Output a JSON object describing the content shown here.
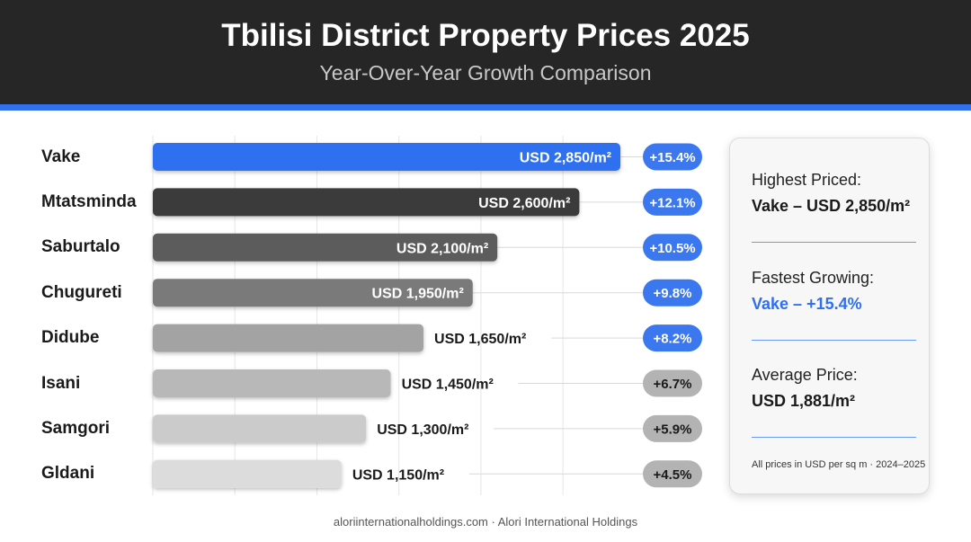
{
  "header": {
    "title": "Tbilisi District Property Prices 2025",
    "subtitle": "Year-Over-Year Growth Comparison"
  },
  "chart_data": {
    "type": "bar",
    "orientation": "horizontal",
    "categories": [
      "Vake",
      "Mtatsminda",
      "Saburtalo",
      "Chugureti",
      "Didube",
      "Isani",
      "Samgori",
      "Gldani"
    ],
    "values": [
      2850,
      2600,
      2100,
      1950,
      1650,
      1450,
      1300,
      1150
    ],
    "value_labels": [
      "USD 2,850/m²",
      "USD 2,600/m²",
      "USD 2,100/m²",
      "USD 1,950/m²",
      "USD 1,650/m²",
      "USD 1,450/m²",
      "USD 1,300/m²",
      "USD 1,150/m²"
    ],
    "growth_labels": [
      "+15.4%",
      "+12.1%",
      "+10.5%",
      "+9.8%",
      "+8.2%",
      "+6.7%",
      "+5.9%",
      "+4.5%"
    ],
    "growth": [
      15.4,
      12.1,
      10.5,
      9.8,
      8.2,
      6.7,
      5.9,
      4.5
    ],
    "bar_colors": [
      "#2f6ff0",
      "#3a3a3a",
      "#5c5c5c",
      "#7a7a7a",
      "#a3a3a3",
      "#b8b8b8",
      "#cbcbcb",
      "#dcdcdc"
    ],
    "badge_colors": [
      "#3b78f0",
      "#3b78f0",
      "#3b78f0",
      "#3b78f0",
      "#3b78f0",
      "#b3b3b3",
      "#b3b3b3",
      "#b3b3b3"
    ],
    "xlim": [
      0,
      3000
    ],
    "grid": true,
    "title": "Tbilisi District Property Prices 2025",
    "subtitle": "Year-Over-Year Growth Comparison"
  },
  "panel": {
    "highest_title": "Highest Priced:",
    "highest_value": "Vake – USD 2,850/m²",
    "fastest_title": "Fastest Growing:",
    "fastest_value": "Vake – +15.4%",
    "average_title": "Average Price:",
    "average_value": "USD 1,881/m²",
    "note": "All prices in USD per sq m · 2024–2025"
  },
  "footer": {
    "text": "aloriinternationalholdings.com · Alori International Holdings"
  },
  "colors": {
    "header_bg": "#262626",
    "accent": "#2f6ff0"
  }
}
